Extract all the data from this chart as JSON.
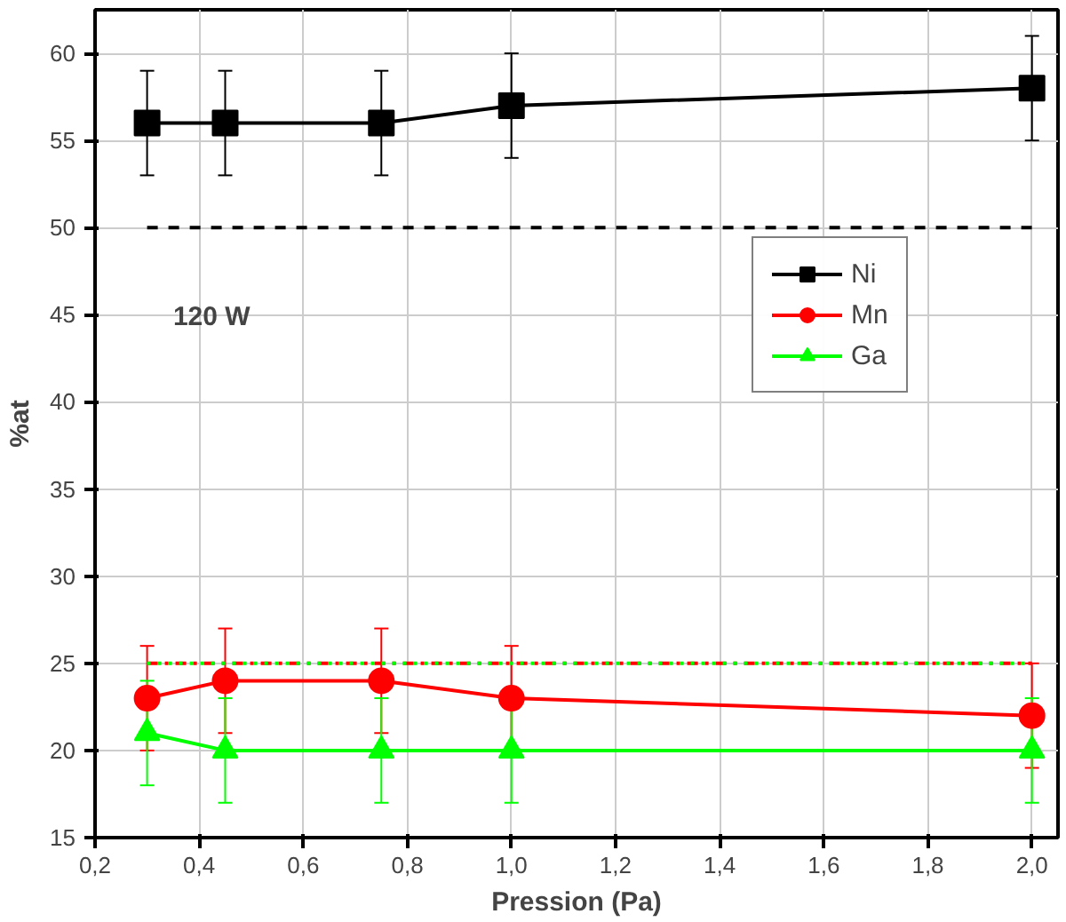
{
  "chart_data": {
    "type": "line",
    "xlabel": "Pression (Pa)",
    "ylabel": "%at",
    "x": [
      0.3,
      0.45,
      0.75,
      1.0,
      2.0
    ],
    "series": [
      {
        "name": "Ni",
        "color": "#000000",
        "marker": "square",
        "values": [
          56,
          56,
          56,
          57,
          58
        ],
        "errors": [
          3,
          3,
          3,
          3,
          3
        ]
      },
      {
        "name": "Mn",
        "color": "#ff0000",
        "marker": "circle",
        "values": [
          23,
          24,
          24,
          23,
          22
        ],
        "errors": [
          3,
          3,
          3,
          3,
          3
        ]
      },
      {
        "name": "Ga",
        "color": "#00ff00",
        "marker": "triangle",
        "values": [
          21,
          20,
          20,
          20,
          20
        ],
        "errors": [
          3,
          3,
          3,
          3,
          3
        ]
      }
    ],
    "ref_lines": [
      {
        "axis": "y",
        "value": 50,
        "label": null,
        "color": "#000000",
        "line_style": "dashed"
      },
      {
        "axis": "y",
        "value": 25,
        "label": null,
        "color": "#ff0000",
        "line_style": "dashdot"
      },
      {
        "axis": "y",
        "value": 25,
        "label": null,
        "color": "#00ff00",
        "line_style": "dotted"
      }
    ],
    "annotations": [
      "120 W"
    ],
    "xlim": [
      0.2,
      2.05
    ],
    "ylim": [
      15,
      62.5
    ],
    "xticks": [
      {
        "value": 0.2,
        "label": "0,2"
      },
      {
        "value": 0.4,
        "label": "0,4"
      },
      {
        "value": 0.6,
        "label": "0,6"
      },
      {
        "value": 0.8,
        "label": "0,8"
      },
      {
        "value": 1.0,
        "label": "1,0"
      },
      {
        "value": 1.2,
        "label": "1,2"
      },
      {
        "value": 1.4,
        "label": "1,4"
      },
      {
        "value": 1.6,
        "label": "1,6"
      },
      {
        "value": 1.8,
        "label": "1,8"
      },
      {
        "value": 2.0,
        "label": "2,0"
      }
    ],
    "yticks": [
      15,
      20,
      25,
      30,
      35,
      40,
      45,
      50,
      55,
      60
    ],
    "grid": true,
    "legend": "right",
    "line_style": "solid"
  }
}
